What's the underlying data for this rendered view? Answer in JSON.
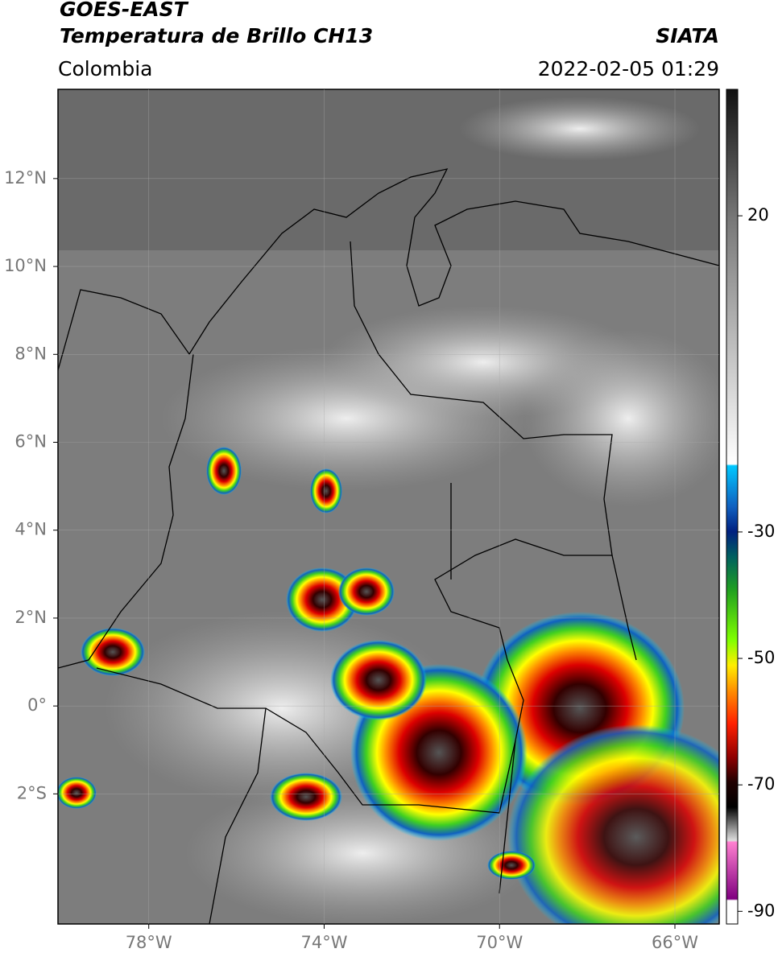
{
  "header": {
    "satellite": "GOES-EAST",
    "product": "Temperatura de Brillo CH13",
    "source": "SIATA",
    "region": "Colombia",
    "datetime": "2022-02-05 01:29"
  },
  "map": {
    "xlim": [
      -80.07,
      -64.99
    ],
    "ylim": [
      -4.96,
      14.03
    ],
    "xticks": [
      {
        "value": -78,
        "label": "78°W"
      },
      {
        "value": -74,
        "label": "74°W"
      },
      {
        "value": -70,
        "label": "70°W"
      },
      {
        "value": -66,
        "label": "66°W"
      }
    ],
    "yticks": [
      {
        "value": 12,
        "label": "12°N"
      },
      {
        "value": 10,
        "label": "10°N"
      },
      {
        "value": 8,
        "label": "8°N"
      },
      {
        "value": 6,
        "label": "6°N"
      },
      {
        "value": 4,
        "label": "4°N"
      },
      {
        "value": 2,
        "label": "2°N"
      },
      {
        "value": 0,
        "label": "0°"
      },
      {
        "value": -2,
        "label": "2°S"
      }
    ]
  },
  "colorbar": {
    "lim": [
      -92,
      40
    ],
    "ticks": [
      20,
      -30,
      -50,
      -70,
      -90
    ]
  }
}
